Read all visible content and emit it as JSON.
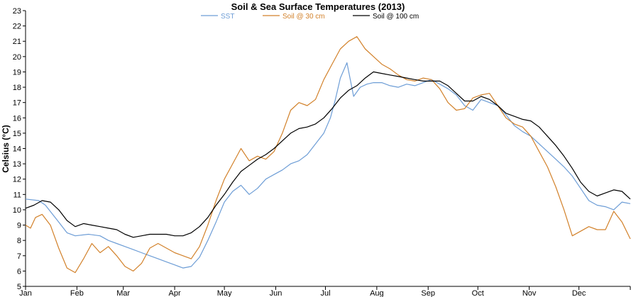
{
  "chart_data": {
    "type": "line",
    "title": "Soil & Sea Surface Temperatures (2013)",
    "xlabel": "",
    "ylabel": "Celsius (°C)",
    "ylim": [
      5,
      23
    ],
    "yticks": [
      5,
      6,
      7,
      8,
      9,
      10,
      11,
      12,
      13,
      14,
      15,
      16,
      17,
      18,
      19,
      20,
      21,
      22,
      23
    ],
    "xlim": [
      0,
      365
    ],
    "month_labels": [
      "Jan",
      "Feb",
      "Mar",
      "Apr",
      "May",
      "Jun",
      "Jul",
      "Aug",
      "Sep",
      "Oct",
      "Nov",
      "Dec"
    ],
    "month_start_days": [
      0,
      31,
      59,
      90,
      120,
      151,
      181,
      212,
      243,
      273,
      304,
      334
    ],
    "grid": false,
    "legend_position": "top",
    "series": [
      {
        "name": "SST",
        "color": "#6d9dd6",
        "x": [
          0,
          8,
          12,
          20,
          25,
          30,
          38,
          45,
          50,
          55,
          60,
          65,
          70,
          75,
          80,
          85,
          90,
          95,
          100,
          105,
          110,
          115,
          120,
          125,
          130,
          135,
          140,
          145,
          150,
          155,
          160,
          165,
          170,
          175,
          180,
          184,
          187,
          190,
          194,
          198,
          202,
          206,
          210,
          215,
          220,
          225,
          230,
          235,
          240,
          245,
          250,
          255,
          260,
          265,
          270,
          275,
          280,
          285,
          290,
          295,
          300,
          305,
          310,
          315,
          320,
          325,
          330,
          335,
          340,
          345,
          350,
          355,
          360,
          365
        ],
        "y": [
          10.7,
          10.6,
          10.3,
          9.2,
          8.5,
          8.3,
          8.4,
          8.3,
          8.0,
          7.8,
          7.6,
          7.4,
          7.2,
          7.0,
          6.8,
          6.6,
          6.4,
          6.2,
          6.3,
          6.9,
          8.0,
          9.2,
          10.5,
          11.2,
          11.6,
          11.0,
          11.4,
          12.0,
          12.3,
          12.6,
          13.0,
          13.2,
          13.6,
          14.3,
          15.0,
          16.0,
          17.2,
          18.6,
          19.6,
          17.4,
          18.0,
          18.2,
          18.3,
          18.3,
          18.1,
          18.0,
          18.2,
          18.1,
          18.3,
          18.5,
          18.2,
          17.9,
          17.5,
          16.8,
          16.5,
          17.2,
          17.0,
          16.8,
          16.2,
          15.5,
          15.1,
          14.8,
          14.3,
          13.8,
          13.3,
          12.8,
          12.2,
          11.4,
          10.6,
          10.3,
          10.2,
          10.0,
          10.5,
          10.4
        ]
      },
      {
        "name": "Soil @ 30 cm",
        "color": "#d2812a",
        "x": [
          0,
          3,
          6,
          10,
          15,
          20,
          25,
          30,
          35,
          40,
          45,
          50,
          55,
          60,
          65,
          70,
          75,
          80,
          85,
          90,
          95,
          100,
          105,
          110,
          115,
          120,
          125,
          130,
          135,
          140,
          145,
          150,
          155,
          160,
          165,
          170,
          175,
          180,
          185,
          190,
          195,
          200,
          205,
          210,
          215,
          220,
          225,
          230,
          235,
          240,
          245,
          250,
          255,
          260,
          265,
          270,
          275,
          280,
          285,
          290,
          295,
          300,
          305,
          310,
          315,
          320,
          325,
          330,
          335,
          340,
          345,
          350,
          355,
          360,
          365
        ],
        "y": [
          9.0,
          8.8,
          9.5,
          9.7,
          9.0,
          7.5,
          6.2,
          5.9,
          6.8,
          7.8,
          7.2,
          7.6,
          7.0,
          6.3,
          6.0,
          6.5,
          7.5,
          7.8,
          7.5,
          7.2,
          7.0,
          6.8,
          7.6,
          9.0,
          10.6,
          12.0,
          13.0,
          14.0,
          13.2,
          13.5,
          13.3,
          13.8,
          15.0,
          16.5,
          17.0,
          16.8,
          17.2,
          18.5,
          19.5,
          20.5,
          21.0,
          21.3,
          20.5,
          20.0,
          19.5,
          19.2,
          18.8,
          18.5,
          18.4,
          18.6,
          18.5,
          17.9,
          17.0,
          16.5,
          16.6,
          17.3,
          17.5,
          17.6,
          16.8,
          16.0,
          15.6,
          15.4,
          14.8,
          13.8,
          12.8,
          11.5,
          10.0,
          8.3,
          8.6,
          8.9,
          8.7,
          8.7,
          9.9,
          9.2,
          8.1
        ]
      },
      {
        "name": "Soil @ 100 cm",
        "color": "#000000",
        "x": [
          0,
          5,
          10,
          15,
          20,
          25,
          30,
          35,
          40,
          45,
          50,
          55,
          60,
          65,
          70,
          75,
          80,
          85,
          90,
          95,
          100,
          105,
          110,
          115,
          120,
          125,
          130,
          135,
          140,
          145,
          150,
          155,
          160,
          165,
          170,
          175,
          180,
          185,
          190,
          195,
          200,
          205,
          210,
          215,
          220,
          225,
          230,
          235,
          240,
          245,
          250,
          255,
          260,
          265,
          270,
          275,
          280,
          285,
          290,
          295,
          300,
          305,
          310,
          315,
          320,
          325,
          330,
          335,
          340,
          345,
          350,
          355,
          360,
          365
        ],
        "y": [
          10.1,
          10.3,
          10.6,
          10.5,
          10.0,
          9.3,
          8.9,
          9.1,
          9.0,
          8.9,
          8.8,
          8.7,
          8.4,
          8.2,
          8.3,
          8.4,
          8.4,
          8.4,
          8.3,
          8.3,
          8.5,
          8.9,
          9.5,
          10.3,
          11.0,
          11.8,
          12.5,
          12.9,
          13.3,
          13.6,
          14.0,
          14.5,
          15.0,
          15.3,
          15.4,
          15.6,
          16.0,
          16.6,
          17.3,
          17.8,
          18.1,
          18.6,
          19.0,
          18.9,
          18.8,
          18.7,
          18.6,
          18.5,
          18.4,
          18.4,
          18.4,
          18.1,
          17.6,
          17.1,
          17.1,
          17.4,
          17.2,
          16.8,
          16.3,
          16.1,
          15.9,
          15.8,
          15.4,
          14.8,
          14.2,
          13.5,
          12.7,
          11.8,
          11.2,
          10.9,
          11.1,
          11.3,
          11.2,
          10.7
        ]
      }
    ]
  }
}
